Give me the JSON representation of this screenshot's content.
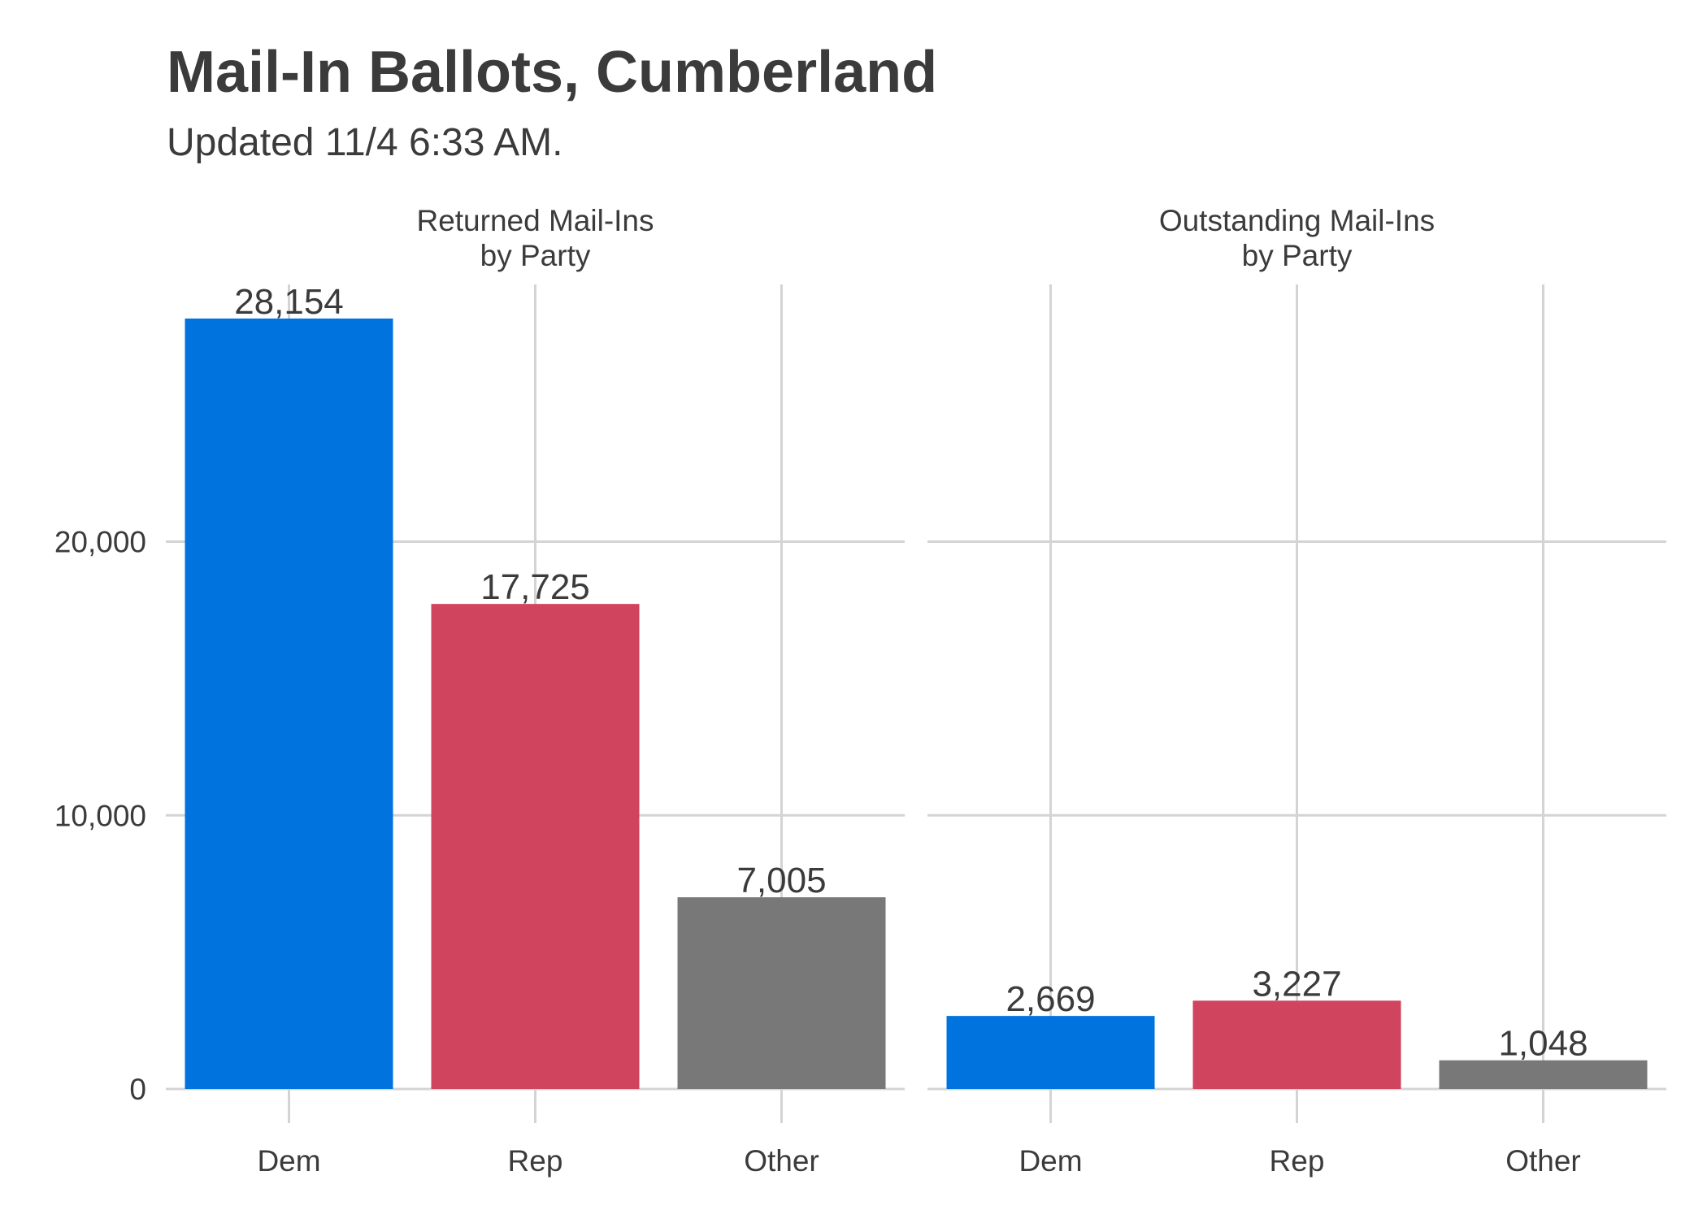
{
  "title": "Mail-In Ballots, Cumberland",
  "subtitle": "Updated 11/4 6:33 AM.",
  "colors": {
    "Dem": "#0073df",
    "Rep": "#d1445d",
    "Other": "#787878"
  },
  "chart_data": {
    "type": "bar",
    "title": "Mail-In Ballots, Cumberland",
    "subtitle": "Updated 11/4 6:33 AM.",
    "xlabel": "",
    "ylabel": "",
    "ylim": [
      0,
      29000
    ],
    "yticks": [
      0,
      10000,
      20000
    ],
    "ytick_labels": [
      "0",
      "10,000",
      "20,000"
    ],
    "categories": [
      "Dem",
      "Rep",
      "Other"
    ],
    "grid": true,
    "facets": [
      {
        "title_lines": [
          "Returned Mail-Ins",
          "by Party"
        ],
        "values": [
          28154,
          17725,
          7005
        ],
        "labels": [
          "28,154",
          "17,725",
          "7,005"
        ]
      },
      {
        "title_lines": [
          "Outstanding Mail-Ins",
          "by Party"
        ],
        "values": [
          2669,
          3227,
          1048
        ],
        "labels": [
          "2,669",
          "3,227",
          "1,048"
        ]
      }
    ]
  }
}
